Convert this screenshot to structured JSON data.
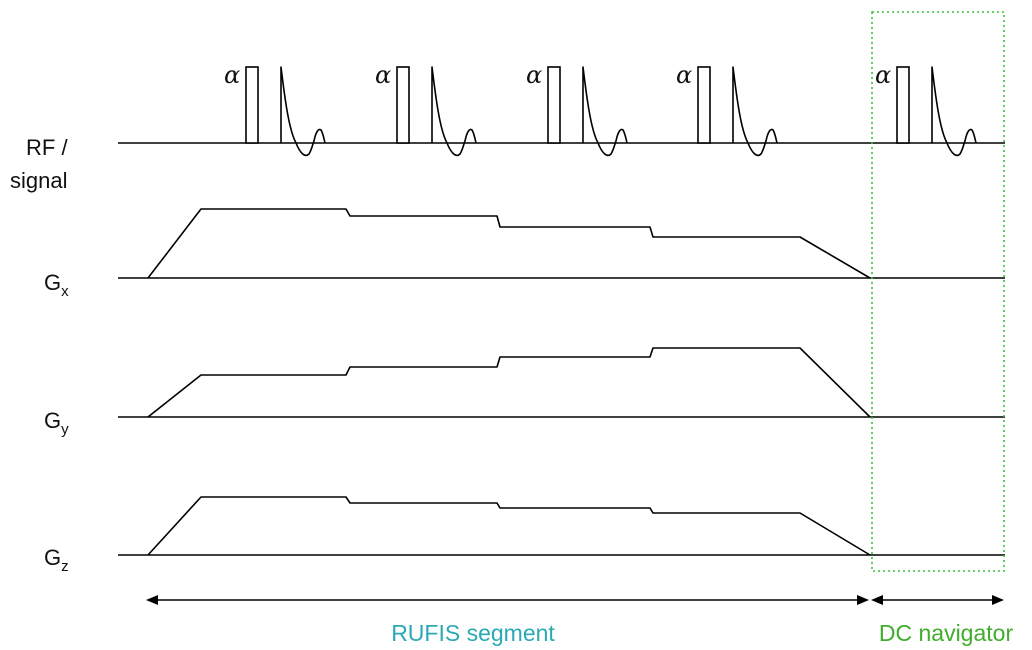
{
  "rows": {
    "rf": {
      "line1": "RF /",
      "line2": "signal"
    },
    "gx": {
      "base": "G",
      "sub": "x"
    },
    "gy": {
      "base": "G",
      "sub": "y"
    },
    "gz": {
      "base": "G",
      "sub": "z"
    }
  },
  "pulse_symbol": "α",
  "segments": {
    "rufis": {
      "label": "RUFIS segment",
      "color": "#2aa9b5"
    },
    "dc_navigator": {
      "label": "DC navigator",
      "color": "#3fae2a"
    }
  },
  "colors": {
    "trace": "#000000",
    "box": "#3fbf3a"
  },
  "icons": {
    "span_arrow": "double-headed-arrow"
  }
}
